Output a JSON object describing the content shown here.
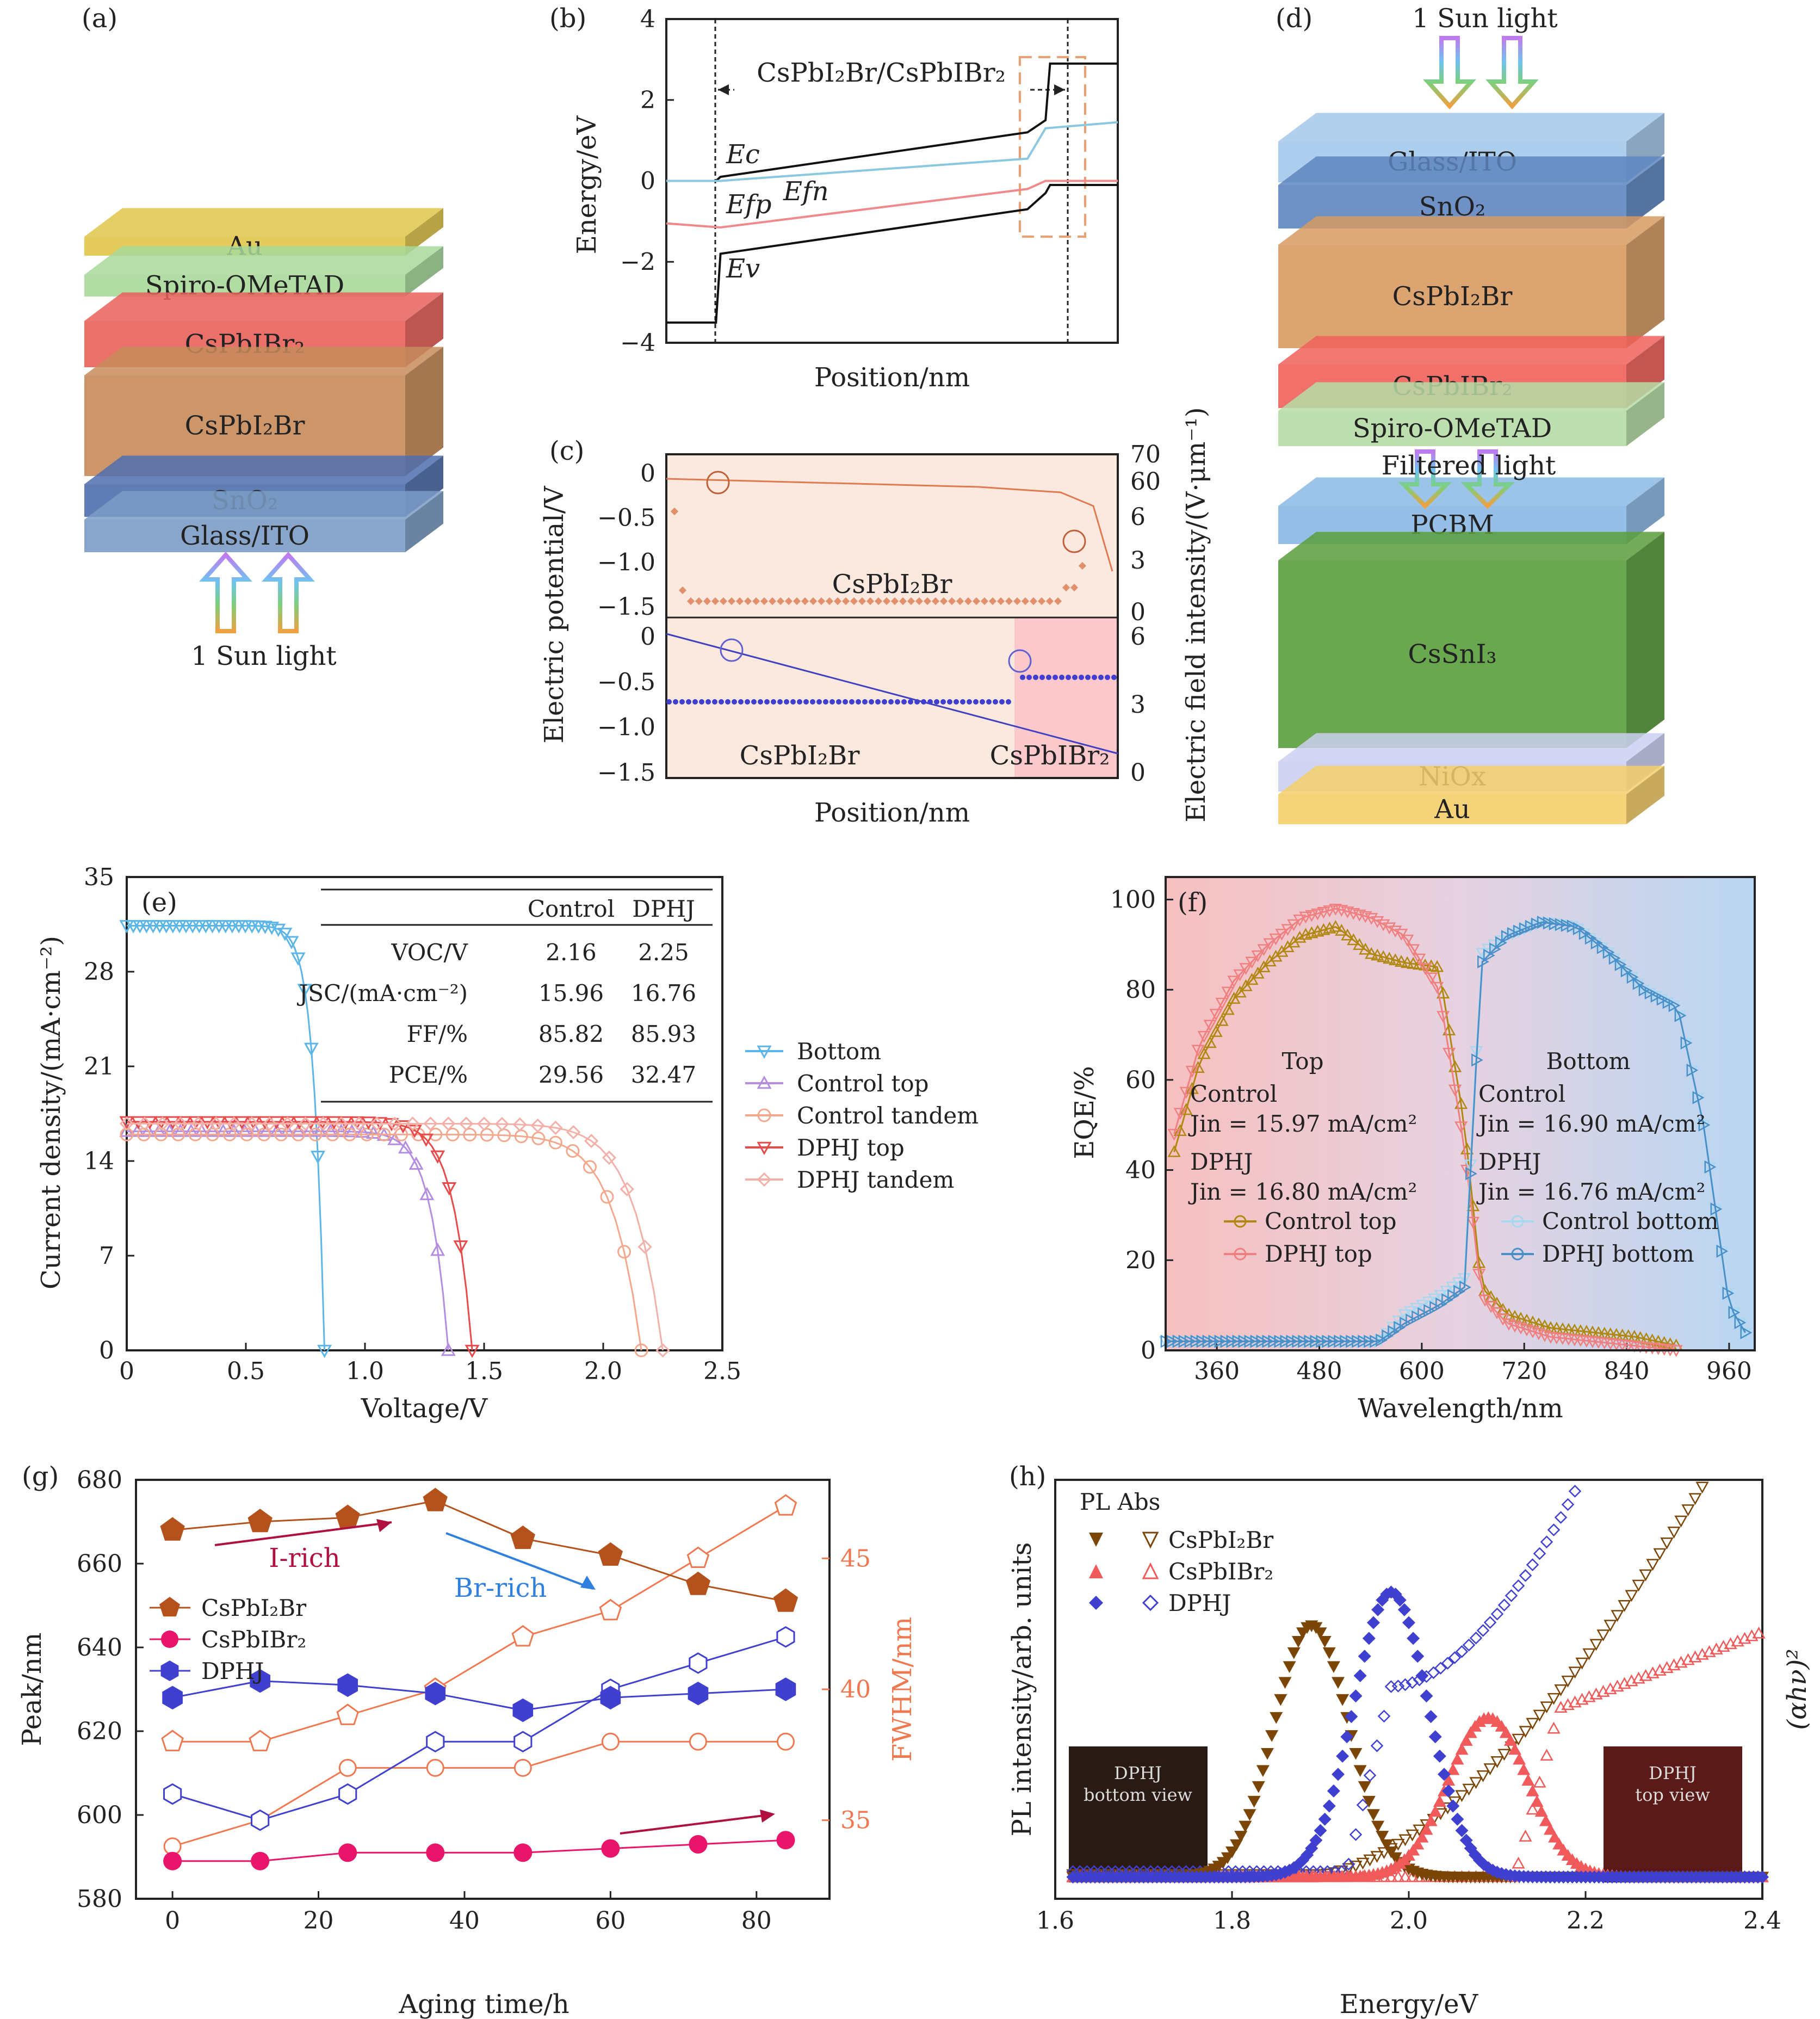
{
  "panels": {
    "a": {
      "label": "(a)",
      "layers": [
        "Au",
        "Spiro-OMeTAD",
        "CsPbIBr₂",
        "CsPbI₂Br",
        "SnO₂",
        "Glass/ITO"
      ],
      "light": "1 Sun light"
    },
    "b": {
      "label": "(b)",
      "xlabel": "Position/nm",
      "ylabel": "Energy/eV",
      "yticks": [
        "4",
        "2",
        "0",
        "−2",
        "−4"
      ],
      "bracket": "CsPbI₂Br/CsPbIBr₂",
      "Ec": "Ec",
      "Efn": "Efn",
      "Efp": "Efp",
      "Ev": "Ev"
    },
    "c": {
      "label": "(c)",
      "xlabel": "Position/nm",
      "ylabel_left": "Electric potential/V",
      "ylabel_right": "Electric field intensity/(V·μm⁻¹)",
      "top_region": "CsPbI₂Br",
      "bottom_left": "CsPbI₂Br",
      "bottom_right": "CsPbIBr₂",
      "yticks_left_top": [
        "0",
        "−0.5",
        "−1.0",
        "−1.5"
      ],
      "yticks_left_bottom": [
        "0",
        "−0.5",
        "−1.0",
        "−1.5"
      ],
      "yticks_right_top": [
        "70",
        "60",
        "6",
        "3",
        "0"
      ],
      "yticks_right_bottom": [
        "6",
        "3",
        "0"
      ]
    },
    "d": {
      "label": "(d)",
      "light": "1 Sun light",
      "filtered": "Filtered light",
      "layers": [
        "Glass/ITO",
        "SnO₂",
        "CsPbI₂Br",
        "CsPbIBr₂",
        "Spiro-OMeTAD",
        "PCBM",
        "CsSnI₃",
        "NiOx",
        "Au"
      ]
    },
    "e": {
      "label": "(e)",
      "xlabel": "Voltage/V",
      "ylabel": "Current density/(mA·cm⁻²)",
      "table": {
        "headers": [
          "",
          "Control",
          "DPHJ"
        ],
        "rows": [
          [
            "VOC/V",
            "2.16",
            "2.25"
          ],
          [
            "JSC/(mA·cm⁻²)",
            "15.96",
            "16.76"
          ],
          [
            "FF/%",
            "85.82",
            "85.93"
          ],
          [
            "PCE/%",
            "29.56",
            "32.47"
          ]
        ]
      },
      "legend": [
        "Bottom",
        "Control top",
        "Control tandem",
        "DPHJ top",
        "DPHJ tandem"
      ]
    },
    "f": {
      "label": "(f)",
      "xlabel": "Wavelength/nm",
      "ylabel": "EQE/%",
      "top_title": "Top",
      "bottom_title": "Bottom",
      "top_text": [
        "Control",
        "Jin = 15.97 mA/cm²",
        "DPHJ",
        "Jin = 16.80 mA/cm²"
      ],
      "bottom_text": [
        "Control",
        "Jin = 16.90 mA/cm²",
        "DPHJ",
        "Jin = 16.76 mA/cm²"
      ],
      "legend_top": [
        "Control top",
        "DPHJ top"
      ],
      "legend_bottom": [
        "Control bottom",
        "DPHJ bottom"
      ]
    },
    "g": {
      "label": "(g)",
      "xlabel": "Aging time/h",
      "ylabel": "Peak/nm",
      "ylabel_right": "FWHM/nm",
      "irich": "I-rich",
      "brrich": "Br-rich",
      "legend": [
        "CsPbI₂Br",
        "CsPbIBr₂",
        "DPHJ"
      ]
    },
    "h": {
      "label": "(h)",
      "xlabel": "Energy/eV",
      "ylabel": "PL intensity/arb. units",
      "ylabel_right": "(αhν)²",
      "legend_header": "PL  Abs",
      "legend": [
        "CsPbI₂Br",
        "CsPbIBr₂",
        "DPHJ"
      ],
      "inset_left": [
        "DPHJ",
        "bottom view"
      ],
      "inset_right": [
        "DPHJ",
        "top view"
      ]
    }
  },
  "colors": {
    "bottom": "#5bb5e6",
    "control_top": "#b48de0",
    "control_tandem": "#f3a88e",
    "dphj_top": "#e84a4a",
    "dphj_tandem": "#f2b0a8",
    "brown": "#7b4506",
    "pink": "#e8156a",
    "blue": "#4040d0",
    "orange": "#f07850",
    "sienna": "#b5521c"
  },
  "chart_data": [
    {
      "panel": "b",
      "type": "line",
      "xlabel": "Position/nm",
      "ylabel": "Energy/eV",
      "ylim": [
        -4,
        4
      ],
      "series": [
        {
          "name": "Ec",
          "x": [
            0,
            0.11,
            0.12,
            0.8,
            0.84,
            0.85,
            1.0
          ],
          "y": [
            0,
            0,
            0.1,
            1.2,
            1.5,
            2.9,
            2.9
          ]
        },
        {
          "name": "Efn",
          "x": [
            0,
            0.12,
            0.8,
            0.84,
            1.0
          ],
          "y": [
            0,
            0,
            0.55,
            1.3,
            1.45
          ]
        },
        {
          "name": "Efp",
          "x": [
            0,
            0.12,
            0.8,
            0.84,
            1.0
          ],
          "y": [
            -1.05,
            -1.15,
            -0.2,
            0,
            0
          ]
        },
        {
          "name": "Ev",
          "x": [
            0,
            0.11,
            0.12,
            0.8,
            0.84,
            0.85,
            1.0
          ],
          "y": [
            -3.5,
            -3.5,
            -1.8,
            -0.7,
            -0.3,
            -0.1,
            -0.1
          ]
        }
      ]
    },
    {
      "panel": "e",
      "type": "line",
      "xlabel": "Voltage/V",
      "ylabel": "Current density/(mA·cm⁻²)",
      "xlim": [
        0,
        2.5
      ],
      "ylim": [
        0,
        35
      ],
      "series": [
        {
          "name": "Bottom",
          "voc": 0.83,
          "jsc": 31.4
        },
        {
          "name": "Control top",
          "voc": 1.35,
          "jsc": 16.2
        },
        {
          "name": "Control tandem",
          "voc": 2.16,
          "jsc": 15.96
        },
        {
          "name": "DPHJ top",
          "voc": 1.45,
          "jsc": 16.9
        },
        {
          "name": "DPHJ tandem",
          "voc": 2.25,
          "jsc": 16.76
        }
      ]
    },
    {
      "panel": "f",
      "type": "line",
      "xlabel": "Wavelength/nm",
      "ylabel": "EQE/%",
      "xlim": [
        300,
        990
      ],
      "ylim": [
        0,
        105
      ],
      "series": [
        {
          "name": "Control top",
          "x": [
            310,
            340,
            380,
            420,
            460,
            500,
            540,
            580,
            620,
            650,
            670,
            700,
            750,
            800,
            850,
            900
          ],
          "y": [
            44,
            64,
            78,
            86,
            92,
            94,
            88,
            86,
            85,
            50,
            14,
            8,
            5,
            4,
            3,
            1
          ]
        },
        {
          "name": "DPHJ top",
          "x": [
            310,
            340,
            380,
            420,
            460,
            500,
            540,
            580,
            620,
            650,
            670,
            700,
            750,
            800,
            850,
            900
          ],
          "y": [
            48,
            68,
            82,
            90,
            96,
            98,
            96,
            92,
            80,
            45,
            12,
            6,
            3,
            2,
            1,
            0
          ]
        },
        {
          "name": "Control bottom",
          "x": [
            300,
            550,
            580,
            620,
            650,
            670,
            700,
            740,
            780,
            820,
            860,
            900,
            930,
            960,
            985
          ],
          "y": [
            2,
            2,
            8,
            12,
            16,
            88,
            92,
            95,
            94,
            88,
            80,
            76,
            50,
            10,
            2
          ]
        },
        {
          "name": "DPHJ bottom",
          "x": [
            300,
            550,
            580,
            620,
            650,
            670,
            700,
            740,
            780,
            820,
            860,
            900,
            930,
            960,
            985
          ],
          "y": [
            2,
            2,
            6,
            10,
            14,
            86,
            92,
            95,
            94,
            88,
            80,
            76,
            50,
            10,
            2
          ]
        }
      ]
    },
    {
      "panel": "g",
      "type": "line",
      "xlabel": "Aging time/h",
      "ylabel": "Peak/nm",
      "ylim": [
        580,
        680
      ],
      "y2lim": [
        32,
        48
      ],
      "x": [
        0,
        12,
        24,
        36,
        48,
        60,
        72,
        84
      ],
      "series": [
        {
          "name": "CsPbI₂Br peak",
          "values": [
            668,
            670,
            671,
            675,
            666,
            662,
            655,
            651
          ]
        },
        {
          "name": "CsPbIBr₂ peak",
          "values": [
            589,
            589,
            591,
            591,
            591,
            592,
            593,
            594
          ]
        },
        {
          "name": "DPHJ peak",
          "values": [
            628,
            632,
            631,
            629,
            625,
            628,
            629,
            630
          ]
        },
        {
          "name": "CsPbI₂Br FWHM",
          "values": [
            38,
            38,
            39,
            40,
            42,
            43,
            45,
            47
          ]
        },
        {
          "name": "CsPbIBr₂ FWHM",
          "values": [
            34,
            35,
            37,
            37,
            37,
            38,
            38,
            38
          ]
        },
        {
          "name": "DPHJ FWHM",
          "values": [
            36,
            35,
            36,
            38,
            38,
            40,
            41,
            42
          ]
        }
      ]
    },
    {
      "panel": "h",
      "type": "scatter",
      "xlabel": "Energy/eV",
      "xlim": [
        1.6,
        2.4
      ],
      "series": [
        {
          "name": "CsPbI₂Br PL",
          "center": 1.89,
          "peak": 0.6
        },
        {
          "name": "CsPbIBr₂ PL",
          "center": 2.09,
          "peak": 0.38
        },
        {
          "name": "DPHJ PL",
          "center": 1.98,
          "peak": 0.68
        }
      ]
    }
  ]
}
